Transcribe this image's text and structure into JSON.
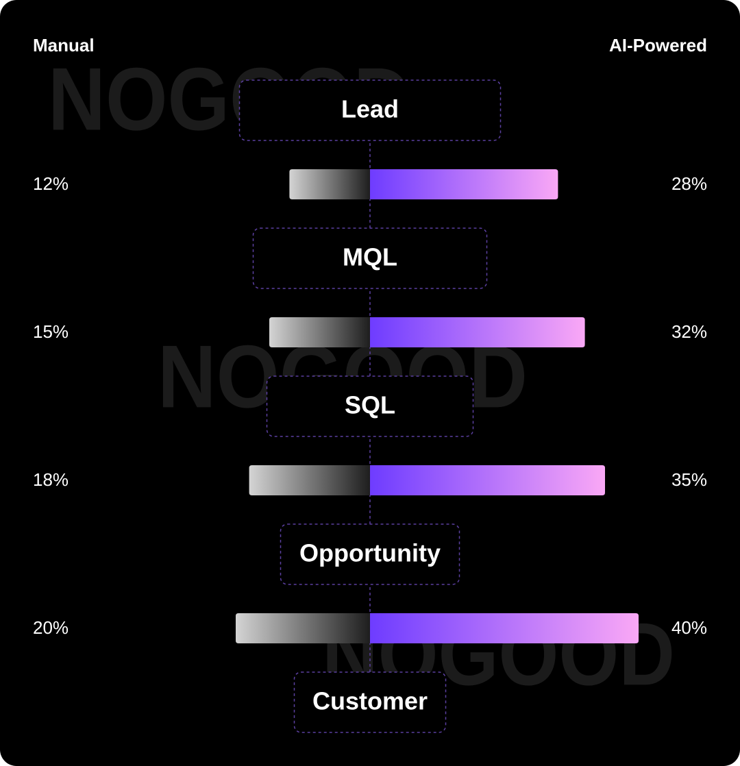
{
  "chart_data": {
    "type": "butterfly",
    "watermark": "NOGOOD",
    "stages": [
      "Lead",
      "MQL",
      "SQL",
      "Opportunity",
      "Customer"
    ],
    "series": [
      {
        "name": "Manual",
        "color": [
          "#d4d4d4",
          "#1e1e1e"
        ],
        "values": [
          12,
          15,
          18,
          20
        ],
        "value_labels": [
          "12%",
          "15%",
          "18%",
          "20%"
        ]
      },
      {
        "name": "AI-Powered",
        "color": [
          "#6e3cff",
          "#faa8f6"
        ],
        "values": [
          28,
          32,
          35,
          40
        ],
        "value_labels": [
          "28%",
          "32%",
          "35%",
          "40%"
        ]
      }
    ]
  }
}
